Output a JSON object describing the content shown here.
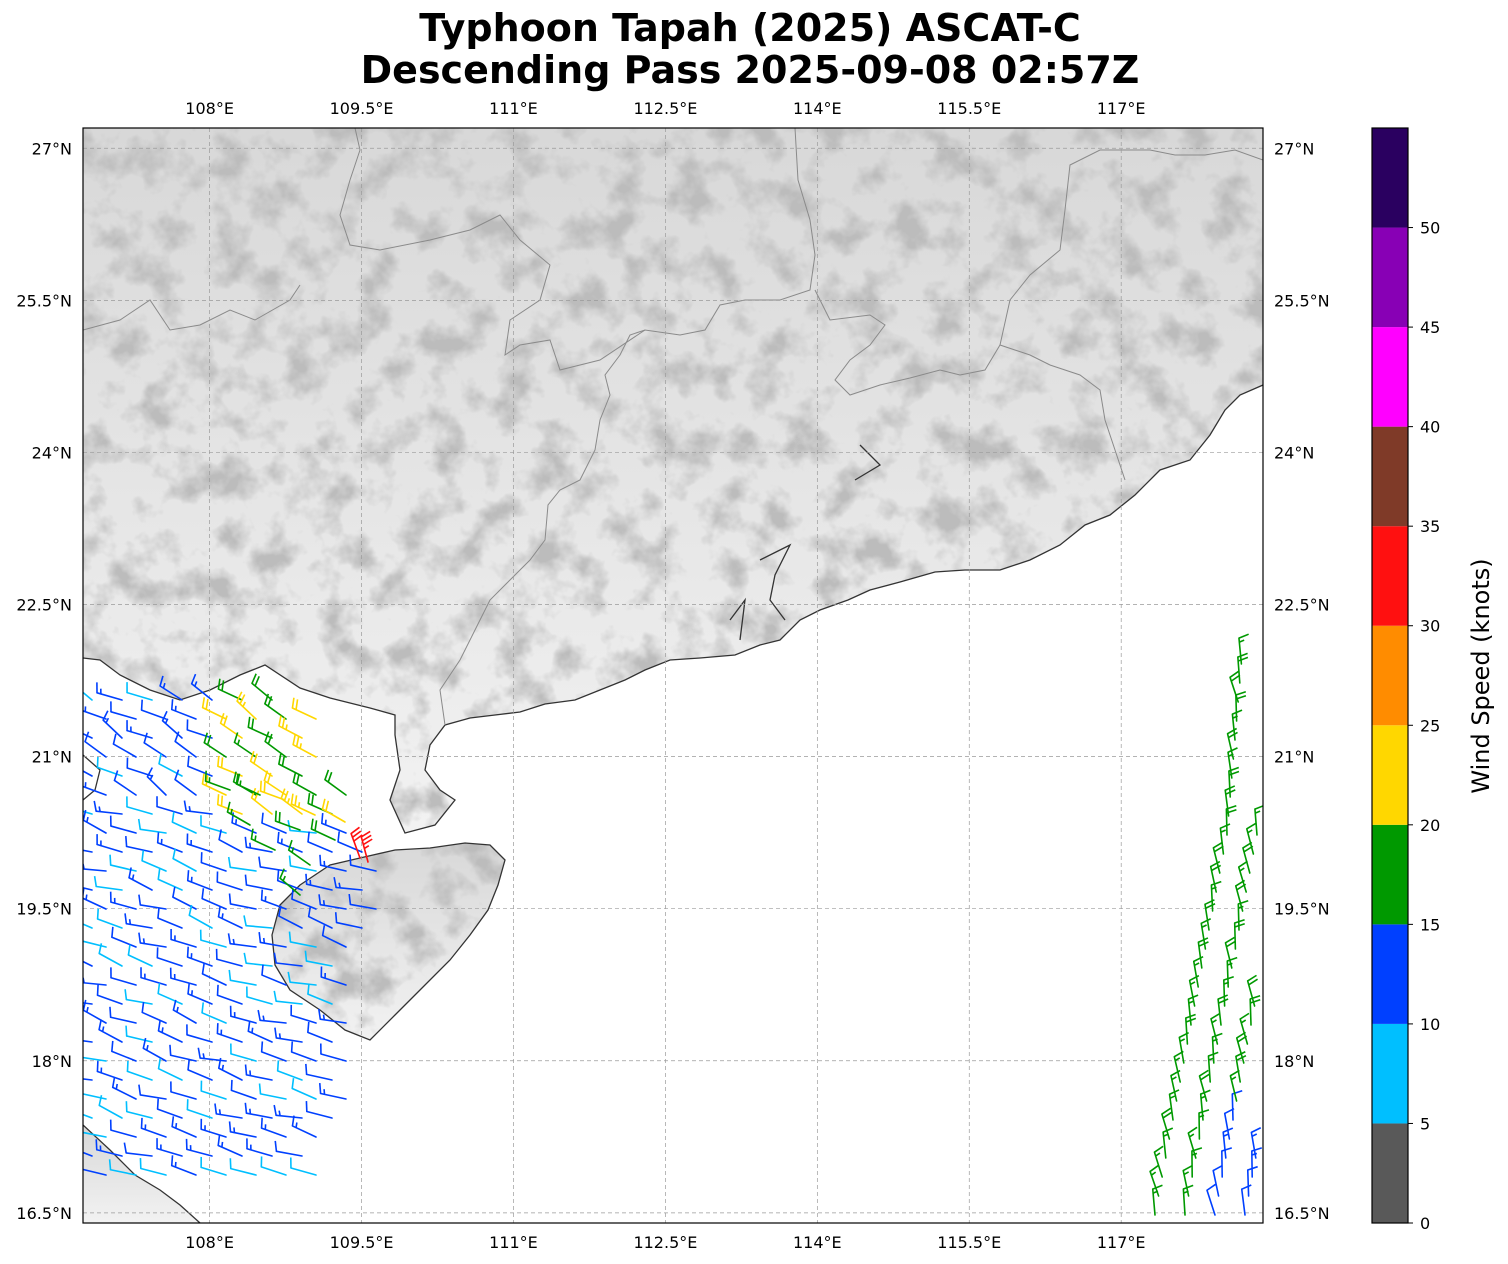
{
  "title": {
    "line1": "Typhoon Tapah (2025) ASCAT-C",
    "line2": "Descending Pass 2025-09-08 02:57Z"
  },
  "map": {
    "lon_range": [
      106.75,
      118.4
    ],
    "lat_range": [
      16.4,
      27.2
    ],
    "lon_ticks": [
      {
        "value": 108,
        "label": "108°E"
      },
      {
        "value": 109.5,
        "label": "109.5°E"
      },
      {
        "value": 111,
        "label": "111°E"
      },
      {
        "value": 112.5,
        "label": "112.5°E"
      },
      {
        "value": 114,
        "label": "114°E"
      },
      {
        "value": 115.5,
        "label": "115.5°E"
      },
      {
        "value": 117,
        "label": "117°E"
      }
    ],
    "lat_ticks": [
      {
        "value": 27,
        "label": "27°N"
      },
      {
        "value": 25.5,
        "label": "25.5°N"
      },
      {
        "value": 24,
        "label": "24°N"
      },
      {
        "value": 22.5,
        "label": "22.5°N"
      },
      {
        "value": 21,
        "label": "21°N"
      },
      {
        "value": 19.5,
        "label": "19.5°N"
      },
      {
        "value": 18,
        "label": "18°N"
      },
      {
        "value": 16.5,
        "label": "16.5°N"
      }
    ],
    "grid": true,
    "background": "grayscale terrain over land, white ocean"
  },
  "colorbar": {
    "label": "Wind Speed (knots)",
    "bins": [
      {
        "from": 0,
        "to": 5,
        "color": "#595959"
      },
      {
        "from": 5,
        "to": 10,
        "color": "#00bfff"
      },
      {
        "from": 10,
        "to": 15,
        "color": "#0040ff"
      },
      {
        "from": 15,
        "to": 20,
        "color": "#009900"
      },
      {
        "from": 20,
        "to": 25,
        "color": "#ffd700"
      },
      {
        "from": 25,
        "to": 30,
        "color": "#ff8c00"
      },
      {
        "from": 30,
        "to": 35,
        "color": "#ff1010"
      },
      {
        "from": 35,
        "to": 40,
        "color": "#7f3a28"
      },
      {
        "from": 40,
        "to": 45,
        "color": "#ff00ff"
      },
      {
        "from": 45,
        "to": 50,
        "color": "#8800b5"
      },
      {
        "from": 50,
        "to": 55,
        "color": "#2a0060"
      }
    ],
    "tick_labels": [
      "0",
      "5",
      "10",
      "15",
      "20",
      "25",
      "30",
      "35",
      "40",
      "45",
      "50"
    ]
  }
}
